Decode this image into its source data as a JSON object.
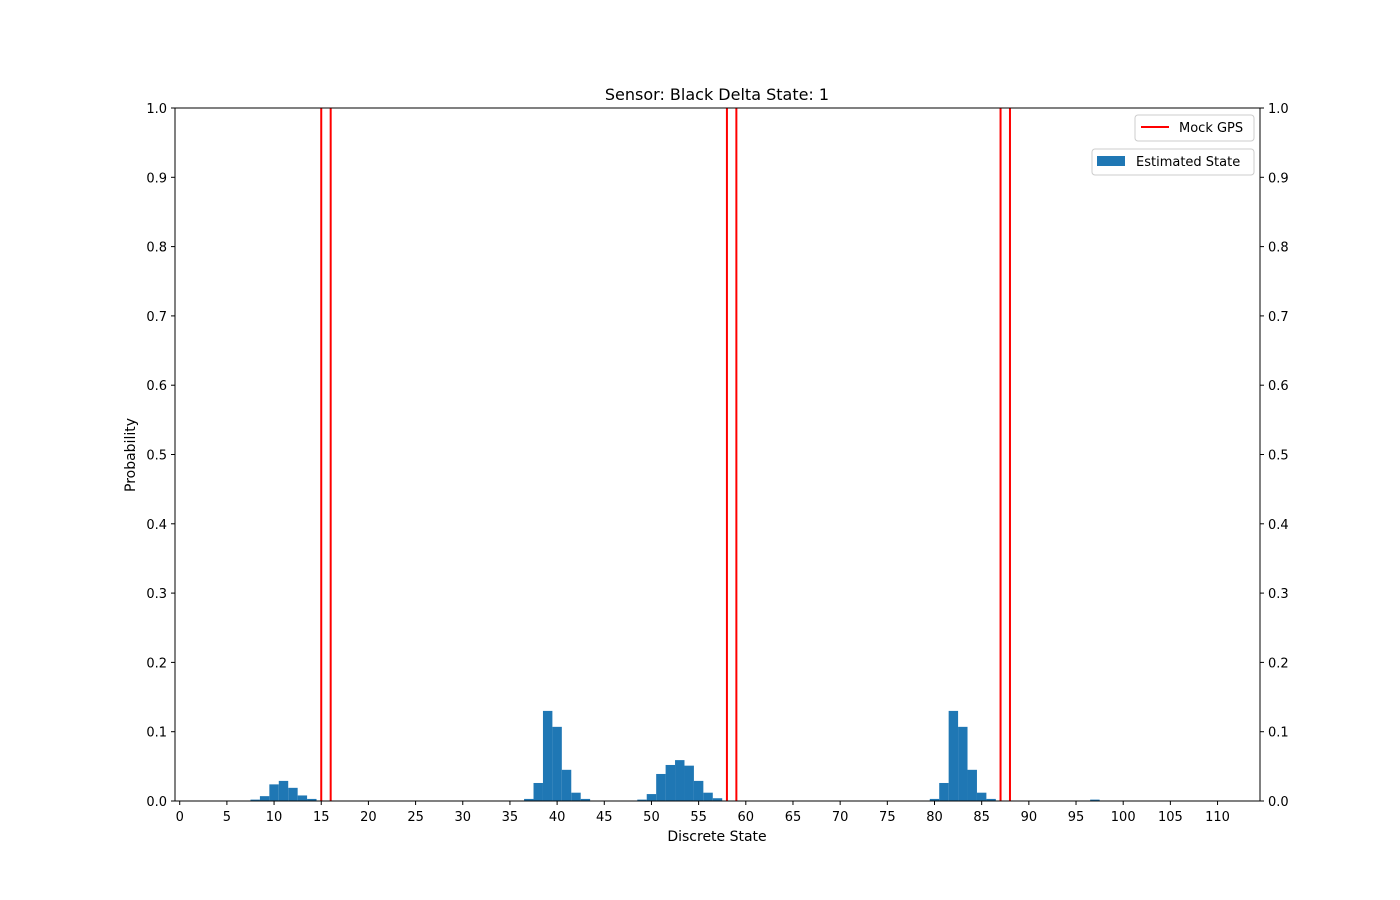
{
  "chart_data": {
    "type": "bar",
    "title": "Sensor: Black Delta State: 1",
    "xlabel": "Discrete State",
    "ylabel": "Probability",
    "xlim": [
      -0.5,
      114.5
    ],
    "ylim": [
      0,
      1.0
    ],
    "x_ticks": [
      0,
      5,
      10,
      15,
      20,
      25,
      30,
      35,
      40,
      45,
      50,
      55,
      60,
      65,
      70,
      75,
      80,
      85,
      90,
      95,
      100,
      105,
      110
    ],
    "y_ticks": [
      0.0,
      0.1,
      0.2,
      0.3,
      0.4,
      0.5,
      0.6,
      0.7,
      0.8,
      0.9,
      1.0
    ],
    "y_tick_labels": [
      "0.0",
      "0.1",
      "0.2",
      "0.3",
      "0.4",
      "0.5",
      "0.6",
      "0.7",
      "0.8",
      "0.9",
      "1.0"
    ],
    "right_y_axis": true,
    "grid": false,
    "legend_placement": "top-right",
    "series": [
      {
        "name": "Estimated State",
        "kind": "bar",
        "color": "#1f77b4",
        "x": [
          8,
          9,
          10,
          11,
          12,
          13,
          14,
          37,
          38,
          39,
          40,
          41,
          42,
          43,
          49,
          50,
          51,
          52,
          53,
          54,
          55,
          56,
          57,
          80,
          81,
          82,
          83,
          84,
          85,
          86,
          97
        ],
        "values": [
          0.002,
          0.007,
          0.024,
          0.029,
          0.019,
          0.008,
          0.003,
          0.003,
          0.026,
          0.13,
          0.107,
          0.045,
          0.012,
          0.003,
          0.002,
          0.01,
          0.039,
          0.052,
          0.059,
          0.051,
          0.029,
          0.012,
          0.004,
          0.003,
          0.026,
          0.13,
          0.107,
          0.045,
          0.012,
          0.003,
          0.002
        ]
      },
      {
        "name": "Mock GPS",
        "kind": "vline",
        "color": "#ff0000",
        "x": [
          15,
          16,
          58,
          59,
          87,
          88
        ]
      }
    ]
  }
}
